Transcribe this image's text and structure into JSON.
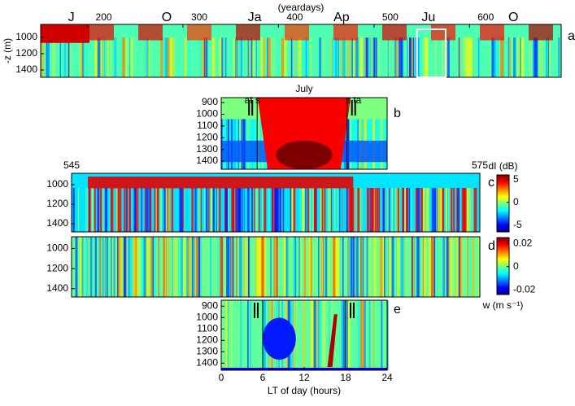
{
  "chart_data": [
    {
      "type": "heatmap",
      "panel": "a",
      "xlabel": "(yeardays)",
      "ylabel": "-z (m)",
      "xlim": [
        151,
        696
      ],
      "xticks": [
        200,
        300,
        400,
        500,
        600
      ],
      "ylim": [
        840,
        1490
      ],
      "yticks": [
        1000,
        1200,
        1400
      ],
      "y_inverted": true,
      "annotations": [
        {
          "text": "J",
          "x": 183
        },
        {
          "text": "O",
          "x": 283
        },
        {
          "text": "Ja",
          "x": 375
        },
        {
          "text": "Ap",
          "x": 466
        },
        {
          "text": "Ju",
          "x": 557
        },
        {
          "text": "O",
          "x": 646
        }
      ],
      "highlight_box": [
        545,
        575
      ]
    },
    {
      "type": "heatmap",
      "panel": "b",
      "title": "July",
      "xlim": [
        0,
        24
      ],
      "ylim": [
        858,
        1469
      ],
      "yticks": [
        900,
        1000,
        1100,
        1200,
        1300,
        1400
      ],
      "y_inverted": true,
      "vlines": [
        5.2,
        18.2
      ],
      "annotations": [
        {
          "text": "at s",
          "x": 5.2
        },
        {
          "text": "s ta",
          "x": 18.2
        }
      ]
    },
    {
      "type": "heatmap",
      "panel": "c",
      "xlim": [
        545,
        575
      ],
      "xticks": [
        545,
        575
      ],
      "ylim": [
        883,
        1483
      ],
      "yticks": [
        1000,
        1200,
        1400
      ],
      "y_inverted": true,
      "colorbar": {
        "label": "dI (dB)",
        "lim": [
          -6.5,
          6
        ],
        "ticks": [
          5,
          0,
          -5
        ]
      }
    },
    {
      "type": "heatmap",
      "panel": "d",
      "ylim": [
        883,
        1483
      ],
      "yticks": [
        1000,
        1200,
        1400
      ],
      "y_inverted": true,
      "colorbar": {
        "label": "w (m s⁻¹)",
        "lim": [
          -0.024,
          0.025
        ],
        "ticks": [
          0.02,
          0,
          -0.02
        ]
      }
    },
    {
      "type": "heatmap",
      "panel": "e",
      "xlabel": "LT of day (hours)",
      "xlim": [
        0,
        24
      ],
      "xticks": [
        0,
        6,
        12,
        18,
        24
      ],
      "ylim": [
        848,
        1462
      ],
      "yticks": [
        900,
        1000,
        1100,
        1200,
        1300,
        1400
      ],
      "y_inverted": true,
      "vlines": [
        6,
        18
      ]
    }
  ]
}
